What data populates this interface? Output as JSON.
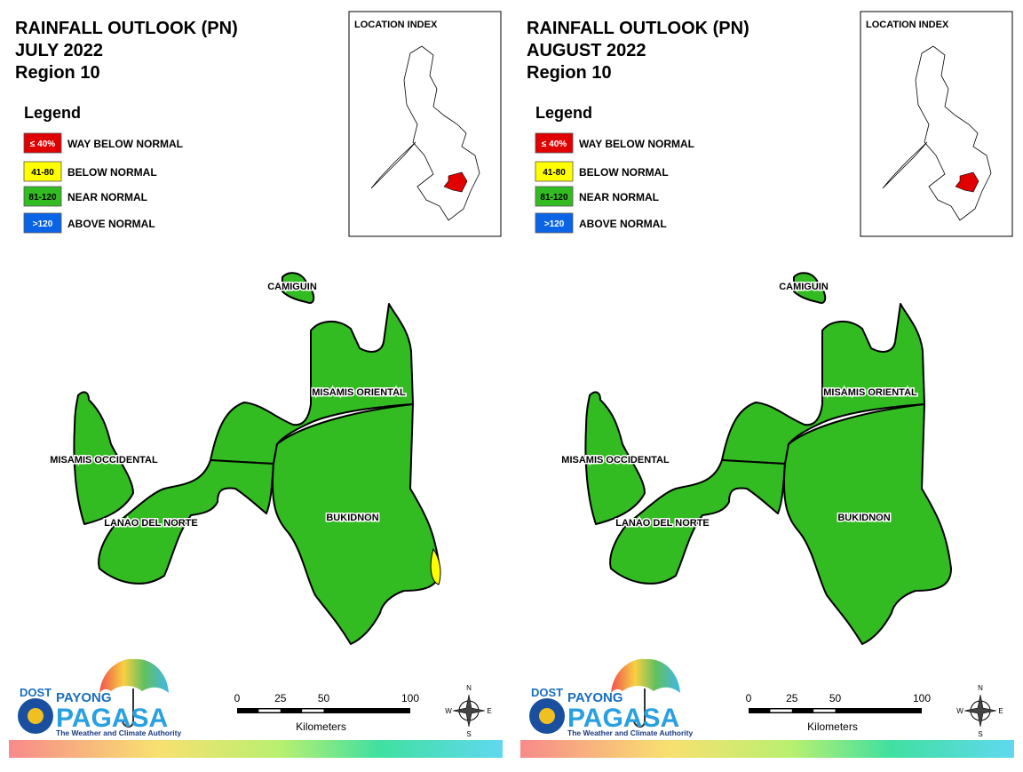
{
  "panels": [
    {
      "title_lines": [
        "RAINFALL OUTLOOK (PN)",
        "JULY 2022",
        "Region 10"
      ],
      "legend_title": "Legend",
      "legend": [
        {
          "key": "≤ 40%",
          "label": "WAY BELOW NORMAL",
          "color": "#e00000"
        },
        {
          "key": "41-80",
          "label": "BELOW NORMAL",
          "color": "#ffff00"
        },
        {
          "key": "81-120",
          "label": "NEAR NORMAL",
          "color": "#33bb22"
        },
        {
          "key": ">120",
          "label": "ABOVE NORMAL",
          "color": "#0a64e6"
        }
      ],
      "location_index": "LOCATION INDEX",
      "provinces": [
        "CAMIGUIN",
        "MISAMIS ORIENTAL",
        "MISAMIS OCCIDENTAL",
        "LANAO DEL NORTE",
        "BUKIDNON"
      ],
      "scale": {
        "ticks": [
          0,
          25,
          50,
          100
        ],
        "unit": "Kilometers"
      },
      "compass": [
        "N",
        "E",
        "S",
        "W"
      ],
      "logo": {
        "agency": "DOST",
        "line1": "PAYONG",
        "line2": "PAGASA",
        "tagline": "The Weather and Climate Authority"
      }
    },
    {
      "title_lines": [
        "RAINFALL OUTLOOK (PN)",
        "AUGUST 2022",
        "Region 10"
      ],
      "legend_title": "Legend",
      "legend": [
        {
          "key": "≤ 40%",
          "label": "WAY BELOW NORMAL",
          "color": "#e00000"
        },
        {
          "key": "41-80",
          "label": "BELOW NORMAL",
          "color": "#ffff00"
        },
        {
          "key": "81-120",
          "label": "NEAR NORMAL",
          "color": "#33bb22"
        },
        {
          "key": ">120",
          "label": "ABOVE NORMAL",
          "color": "#0a64e6"
        }
      ],
      "location_index": "LOCATION INDEX",
      "provinces": [
        "CAMIGUIN",
        "MISAMIS ORIENTAL",
        "MISAMIS OCCIDENTAL",
        "LANAO DEL NORTE",
        "BUKIDNON"
      ],
      "scale": {
        "ticks": [
          0,
          25,
          50,
          100
        ],
        "unit": "Kilometers"
      },
      "compass": [
        "N",
        "E",
        "S",
        "W"
      ],
      "logo": {
        "agency": "DOST",
        "line1": "PAYONG",
        "line2": "PAGASA",
        "tagline": "The Weather and Climate Authority"
      }
    }
  ]
}
